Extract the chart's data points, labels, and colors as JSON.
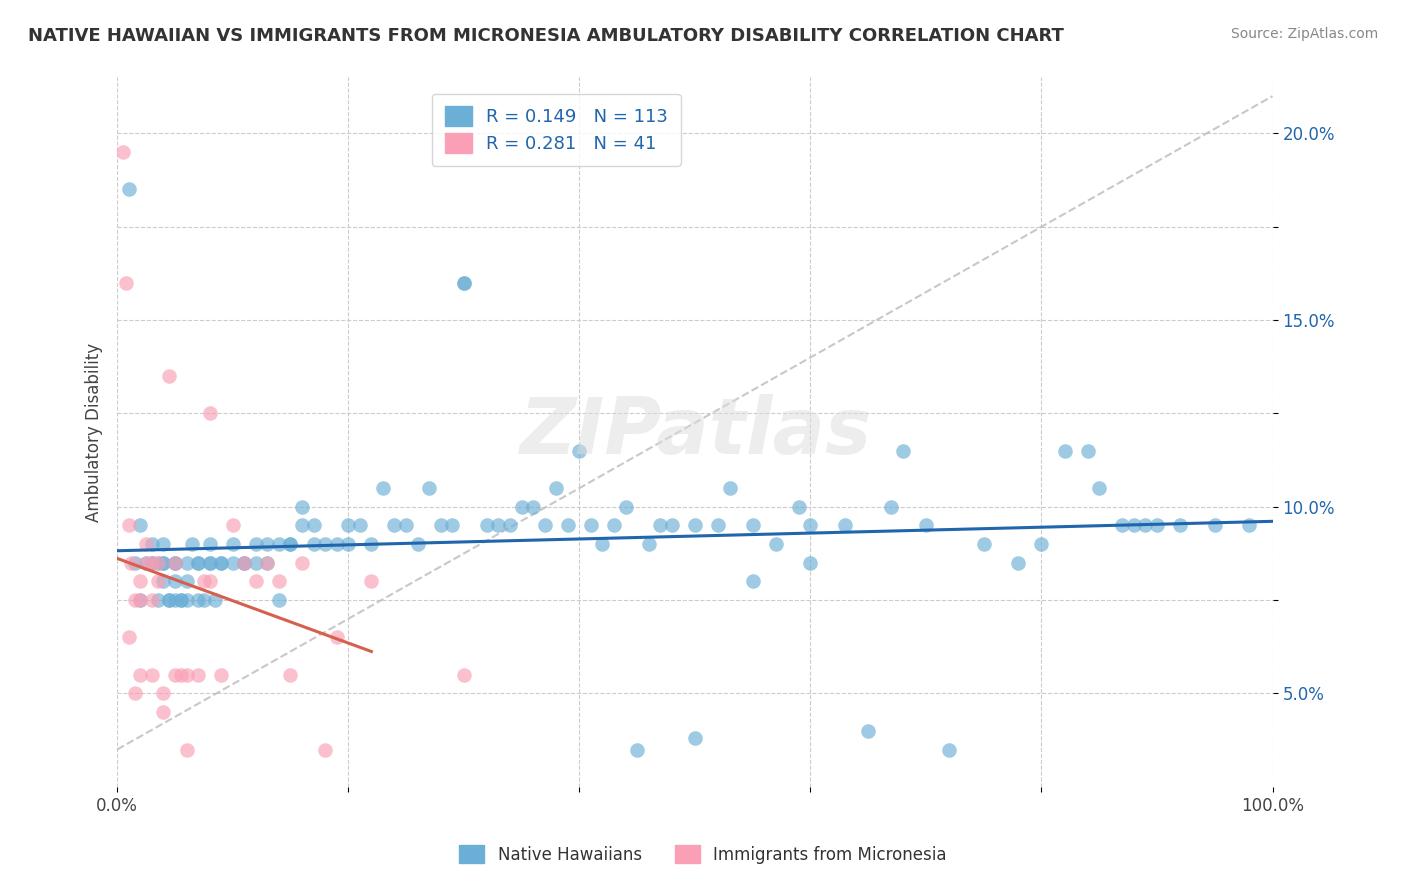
{
  "title": "NATIVE HAWAIIAN VS IMMIGRANTS FROM MICRONESIA AMBULATORY DISABILITY CORRELATION CHART",
  "source": "Source: ZipAtlas.com",
  "ylabel": "Ambulatory Disability",
  "xlim": [
    0,
    100
  ],
  "ylim": [
    2.5,
    21.5
  ],
  "blue_R": 0.149,
  "blue_N": 113,
  "pink_R": 0.281,
  "pink_N": 41,
  "blue_color": "#6baed6",
  "pink_color": "#fa9fb5",
  "blue_line_color": "#2166ac",
  "pink_line_color": "#d6604d",
  "ref_line_color": "#bbbbbb",
  "legend_label_blue": "Native Hawaiians",
  "legend_label_pink": "Immigrants from Micronesia",
  "blue_scatter_x": [
    1.0,
    1.5,
    2.0,
    2.0,
    2.5,
    3.0,
    3.0,
    3.0,
    3.5,
    3.5,
    4.0,
    4.0,
    4.0,
    4.0,
    4.5,
    4.5,
    5.0,
    5.0,
    5.0,
    5.0,
    5.5,
    5.5,
    6.0,
    6.0,
    6.0,
    6.5,
    7.0,
    7.0,
    7.0,
    7.5,
    8.0,
    8.0,
    8.0,
    8.5,
    9.0,
    9.0,
    10.0,
    10.0,
    11.0,
    11.0,
    12.0,
    12.0,
    13.0,
    13.0,
    14.0,
    14.0,
    15.0,
    15.0,
    16.0,
    16.0,
    17.0,
    17.0,
    18.0,
    19.0,
    20.0,
    20.0,
    21.0,
    22.0,
    23.0,
    24.0,
    25.0,
    26.0,
    27.0,
    28.0,
    29.0,
    30.0,
    32.0,
    33.0,
    34.0,
    35.0,
    36.0,
    37.0,
    38.0,
    39.0,
    40.0,
    41.0,
    42.0,
    43.0,
    44.0,
    46.0,
    47.0,
    48.0,
    50.0,
    52.0,
    53.0,
    55.0,
    57.0,
    59.0,
    60.0,
    63.0,
    65.0,
    67.0,
    68.0,
    70.0,
    72.0,
    75.0,
    78.0,
    80.0,
    82.0,
    84.0,
    85.0,
    87.0,
    88.0,
    89.0,
    90.0,
    92.0,
    95.0,
    98.0,
    30.0,
    45.0,
    50.0,
    55.0,
    60.0
  ],
  "blue_scatter_y": [
    18.5,
    8.5,
    9.5,
    7.5,
    8.5,
    8.5,
    8.5,
    9.0,
    7.5,
    8.5,
    8.5,
    8.0,
    8.5,
    9.0,
    7.5,
    7.5,
    8.5,
    8.5,
    7.5,
    8.0,
    7.5,
    7.5,
    7.5,
    8.0,
    8.5,
    9.0,
    8.5,
    8.5,
    7.5,
    7.5,
    8.5,
    9.0,
    8.5,
    7.5,
    8.5,
    8.5,
    9.0,
    8.5,
    8.5,
    8.5,
    8.5,
    9.0,
    9.0,
    8.5,
    9.0,
    7.5,
    9.0,
    9.0,
    10.0,
    9.5,
    9.5,
    9.0,
    9.0,
    9.0,
    9.5,
    9.0,
    9.5,
    9.0,
    10.5,
    9.5,
    9.5,
    9.0,
    10.5,
    9.5,
    9.5,
    16.0,
    9.5,
    9.5,
    9.5,
    10.0,
    10.0,
    9.5,
    10.5,
    9.5,
    11.5,
    9.5,
    9.0,
    9.5,
    10.0,
    9.0,
    9.5,
    9.5,
    9.5,
    9.5,
    10.5,
    9.5,
    9.0,
    10.0,
    9.5,
    9.5,
    4.0,
    10.0,
    11.5,
    9.5,
    3.5,
    9.0,
    8.5,
    9.0,
    11.5,
    11.5,
    10.5,
    9.5,
    9.5,
    9.5,
    9.5,
    9.5,
    9.5,
    9.5,
    16.0,
    3.5,
    3.8,
    8.0,
    8.5
  ],
  "pink_scatter_x": [
    0.5,
    0.8,
    1.0,
    1.0,
    1.2,
    1.5,
    1.5,
    2.0,
    2.0,
    2.0,
    2.5,
    2.5,
    3.0,
    3.0,
    3.0,
    3.5,
    3.5,
    4.0,
    4.0,
    4.5,
    5.0,
    5.0,
    5.5,
    6.0,
    6.0,
    7.0,
    7.5,
    8.0,
    8.0,
    9.0,
    10.0,
    11.0,
    12.0,
    13.0,
    14.0,
    15.0,
    16.0,
    18.0,
    19.0,
    22.0,
    30.0
  ],
  "pink_scatter_y": [
    19.5,
    16.0,
    9.5,
    6.5,
    8.5,
    7.5,
    5.0,
    8.0,
    7.5,
    5.5,
    9.0,
    8.5,
    8.5,
    7.5,
    5.5,
    8.0,
    8.5,
    5.0,
    4.5,
    13.5,
    8.5,
    5.5,
    5.5,
    5.5,
    3.5,
    5.5,
    8.0,
    8.0,
    12.5,
    5.5,
    9.5,
    8.5,
    8.0,
    8.5,
    8.0,
    5.5,
    8.5,
    3.5,
    6.5,
    8.0,
    5.5
  ],
  "watermark": "ZIPatlas",
  "background_color": "#ffffff",
  "grid_color": "#cccccc"
}
